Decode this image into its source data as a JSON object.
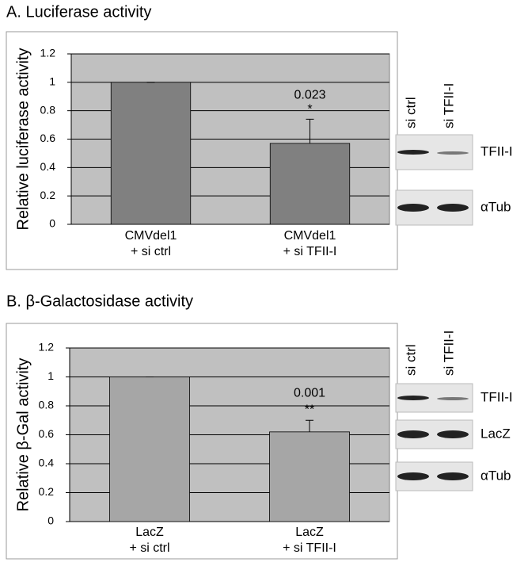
{
  "chart_data": [
    {
      "type": "bar",
      "title": "A. Luciferase activity",
      "y_label": "Relative luciferase activity",
      "categories": [
        [
          "CMVdel1",
          "+ si ctrl"
        ],
        [
          "CMVdel1",
          "+ si TFII-I"
        ]
      ],
      "series": [
        {
          "color": "#808080",
          "values": [
            1,
            0.57
          ],
          "errors": [
            0,
            0.17
          ]
        }
      ],
      "annotations": [
        "0.023",
        "*"
      ],
      "ylim": [
        0,
        1.2
      ],
      "yticks": [
        0,
        {
          "value": 0.2,
          "label": "0.2"
        },
        {
          "value": 0.4,
          "label": "0.4"
        },
        {
          "value": 0.6,
          "label": "0.6"
        },
        {
          "value": 0.8,
          "label": "0.8"
        },
        1,
        {
          "value": 1.2,
          "label": "1.2"
        }
      ],
      "grid": true,
      "blot": {
        "lanes": [
          "si ctrl",
          "si TFII-I"
        ],
        "rows": [
          "TFII-I",
          "αTub"
        ]
      }
    },
    {
      "type": "bar",
      "title": "B. β-Galactosidase activity",
      "y_label": "Relative β-Gal activity",
      "categories": [
        [
          "LacZ",
          "+ si ctrl"
        ],
        [
          "LacZ",
          "+ si TFII-I"
        ]
      ],
      "series": [
        {
          "color": "#a6a6a6",
          "values": [
            1,
            0.62
          ],
          "errors": [
            0,
            0.08
          ]
        }
      ],
      "annotations": [
        "0.001",
        "**"
      ],
      "ylim": [
        0,
        1.2
      ],
      "yticks": [
        0,
        {
          "value": 0.2,
          "label": "0.2"
        },
        {
          "value": 0.4,
          "label": "0.4"
        },
        {
          "value": 0.6,
          "label": "0.6"
        },
        {
          "value": 0.8,
          "label": "0.8"
        },
        1,
        {
          "value": 1.2,
          "label": "1.2"
        }
      ],
      "grid": true,
      "blot": {
        "lanes": [
          "si ctrl",
          "si TFII-I"
        ],
        "rows": [
          "TFII-I",
          "LacZ",
          "αTub"
        ]
      }
    }
  ]
}
